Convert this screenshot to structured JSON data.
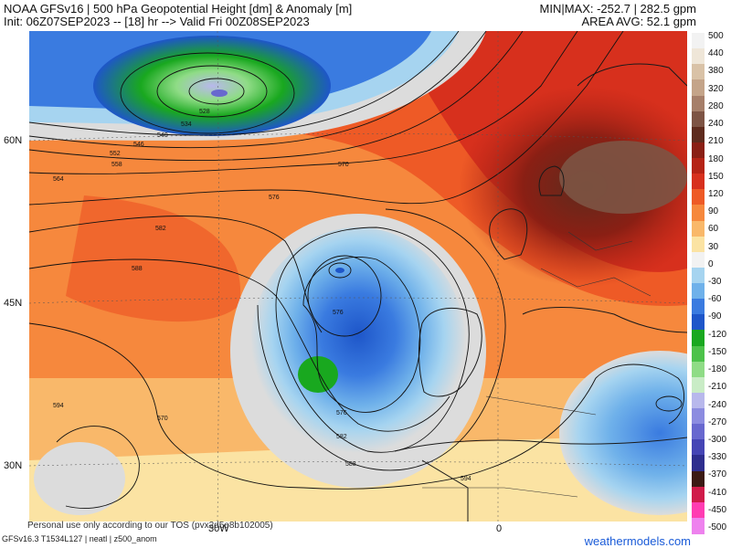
{
  "header": {
    "title_line1": "NOAA GFSv16 | 500 hPa Geopotential Height [dm] & Anomaly [m]",
    "title_line2": "Init: 06Z07SEP2023 -- [18] hr --> Valid Fri 00Z08SEP2023",
    "minmax": "MIN|MAX: -252.7 | 282.5 gpm",
    "area_avg": "AREA AVG: 52.1 gpm"
  },
  "axes": {
    "lat_labels": [
      "60N",
      "45N",
      "30N"
    ],
    "lon_labels": [
      "30W",
      "0"
    ]
  },
  "contour_labels": [
    "528",
    "534",
    "540",
    "546",
    "552",
    "558",
    "564",
    "570",
    "576",
    "582",
    "588",
    "594",
    "576",
    "576",
    "582",
    "588",
    "594",
    "570"
  ],
  "colorbar": {
    "labels": [
      "500",
      "440",
      "380",
      "320",
      "280",
      "240",
      "210",
      "180",
      "150",
      "120",
      "90",
      "60",
      "30",
      "0",
      "-30",
      "-60",
      "-90",
      "-120",
      "-150",
      "-180",
      "-210",
      "-240",
      "-270",
      "-300",
      "-330",
      "-370",
      "-410",
      "-450",
      "-500"
    ],
    "colors": [
      "#f2f2f2",
      "#efe6d8",
      "#d9c2a7",
      "#c4a489",
      "#a67f6a",
      "#7d5444",
      "#5e2b1d",
      "#8a1f14",
      "#b52315",
      "#d7301d",
      "#ee5a26",
      "#f6883d",
      "#f9b86a",
      "#fbe3a3",
      "#f2f2f2",
      "#a6d4f0",
      "#6fb1ea",
      "#3a7be0",
      "#1e56c9",
      "#19a81f",
      "#4cc24a",
      "#8fdc86",
      "#c9ecc6",
      "#b8b8ec",
      "#8c8ce0",
      "#6868cf",
      "#4545b5",
      "#2e2e8e",
      "#3b1a14",
      "#d01b4a",
      "#ff3cb2",
      "#ee82ee"
    ]
  },
  "footer": {
    "model_info": "GFSv16.3 T1534L127 | neatl | z500_anom",
    "tos": "Personal use only according to our TOS (pvx2d5e8b102005)",
    "brand": "weathermodels.com"
  }
}
